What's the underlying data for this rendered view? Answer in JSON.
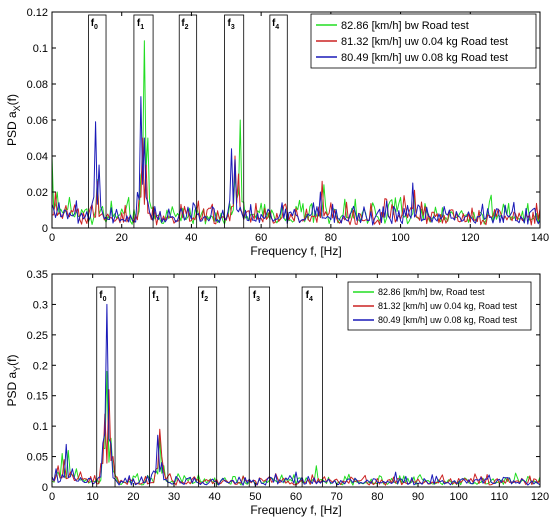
{
  "chart_data": [
    {
      "type": "line",
      "xlabel": "Frequency f, [Hz]",
      "ylabel_main": "PSD a",
      "ylabel_sub": "X",
      "ylabel_tail": "(f)",
      "xlim": [
        0,
        140
      ],
      "ylim": [
        0,
        0.12
      ],
      "xticks": [
        0,
        20,
        40,
        60,
        80,
        100,
        120,
        140
      ],
      "yticks": [
        0,
        0.02,
        0.04,
        0.06,
        0.08,
        0.1,
        0.12
      ],
      "ytick_labels": [
        "0",
        "0.02",
        "0.04",
        "0.06",
        "0.08",
        "0.1",
        "0.12"
      ],
      "legend_position": "top-right",
      "bands": [
        {
          "label": "f",
          "sub": "0",
          "x0": 10.5,
          "x1": 15.5
        },
        {
          "label": "f",
          "sub": "1",
          "x0": 23.5,
          "x1": 29.0
        },
        {
          "label": "f",
          "sub": "2",
          "x0": 36.5,
          "x1": 41.5
        },
        {
          "label": "f",
          "sub": "3",
          "x0": 49.5,
          "x1": 55.0
        },
        {
          "label": "f",
          "sub": "4",
          "x0": 62.5,
          "x1": 67.5
        }
      ],
      "series": [
        {
          "name": "82.86 [km/h] bw Road test",
          "color": "#22dd22",
          "baseline": 0.009,
          "peaks": [
            [
              0,
              0.04
            ],
            [
              1.5,
              0.02
            ],
            [
              5,
              0.017
            ],
            [
              13,
              0.027
            ],
            [
              14.5,
              0.012
            ],
            [
              26.5,
              0.104
            ],
            [
              27.5,
              0.05
            ],
            [
              41,
              0.01
            ],
            [
              52.5,
              0.03
            ],
            [
              54,
              0.06
            ],
            [
              70,
              0.012
            ],
            [
              78,
              0.024
            ],
            [
              84,
              0.016
            ],
            [
              87,
              0.016
            ],
            [
              92,
              0.014
            ],
            [
              100,
              0.017
            ],
            [
              104,
              0.018
            ],
            [
              130,
              0.01
            ]
          ]
        },
        {
          "name": "81.32 [km/h]  uw 0.04 kg Road test",
          "color": "#cc2222",
          "baseline": 0.008,
          "peaks": [
            [
              1,
              0.02
            ],
            [
              4,
              0.012
            ],
            [
              13,
              0.026
            ],
            [
              26,
              0.05
            ],
            [
              27,
              0.035
            ],
            [
              38,
              0.012
            ],
            [
              52.5,
              0.04
            ],
            [
              53.5,
              0.03
            ],
            [
              70,
              0.011
            ],
            [
              77.5,
              0.026
            ],
            [
              80,
              0.014
            ],
            [
              96,
              0.016
            ],
            [
              101,
              0.018
            ],
            [
              104,
              0.021
            ],
            [
              115,
              0.01
            ]
          ]
        },
        {
          "name": "80.49 [km/h]  uw 0.08 kg Road test",
          "color": "#1a1ab8",
          "baseline": 0.008,
          "peaks": [
            [
              2,
              0.014
            ],
            [
              12.5,
              0.059
            ],
            [
              13.5,
              0.035
            ],
            [
              25.5,
              0.073
            ],
            [
              26.5,
              0.05
            ],
            [
              40.5,
              0.014
            ],
            [
              51.5,
              0.044
            ],
            [
              52.5,
              0.038
            ],
            [
              66,
              0.014
            ],
            [
              75,
              0.014
            ],
            [
              77,
              0.02
            ],
            [
              96,
              0.015
            ],
            [
              103.5,
              0.025
            ],
            [
              114,
              0.01
            ],
            [
              132,
              0.009
            ]
          ]
        }
      ]
    },
    {
      "type": "line",
      "xlabel": "Frequency f, [Hz]",
      "ylabel_main": "PSD a",
      "ylabel_sub": "Y",
      "ylabel_tail": "(f)",
      "xlim": [
        0,
        120
      ],
      "ylim": [
        0,
        0.35
      ],
      "xticks": [
        0,
        10,
        20,
        30,
        40,
        50,
        60,
        70,
        80,
        90,
        100,
        110,
        120
      ],
      "yticks": [
        0,
        0.05,
        0.1,
        0.15,
        0.2,
        0.25,
        0.3,
        0.35
      ],
      "ytick_labels": [
        "0",
        "0.05",
        "0.1",
        "0.15",
        "0.2",
        "0.25",
        "0.3",
        "0.35"
      ],
      "legend_position": "top-right",
      "bands": [
        {
          "label": "f",
          "sub": "0",
          "x0": 11.0,
          "x1": 15.5
        },
        {
          "label": "f",
          "sub": "1",
          "x0": 24.0,
          "x1": 28.5
        },
        {
          "label": "f",
          "sub": "2",
          "x0": 36.0,
          "x1": 40.5
        },
        {
          "label": "f",
          "sub": "3",
          "x0": 48.5,
          "x1": 53.5
        },
        {
          "label": "f",
          "sub": "4",
          "x0": 61.5,
          "x1": 66.5
        }
      ],
      "series": [
        {
          "name": "82.86 [km/h]  bw, Road test",
          "color": "#22dd22",
          "baseline": 0.012,
          "peaks": [
            [
              1,
              0.02
            ],
            [
              2.5,
              0.055
            ],
            [
              4,
              0.06
            ],
            [
              6,
              0.03
            ],
            [
              13.5,
              0.19
            ],
            [
              14.5,
              0.08
            ],
            [
              26.5,
              0.08
            ],
            [
              27.5,
              0.035
            ],
            [
              40,
              0.015
            ],
            [
              54,
              0.015
            ],
            [
              61,
              0.015
            ],
            [
              65,
              0.035
            ],
            [
              68,
              0.016
            ],
            [
              91,
              0.013
            ],
            [
              95,
              0.012
            ],
            [
              101,
              0.012
            ]
          ]
        },
        {
          "name": "81.32 [km/h] uw 0.04 kg, Road test",
          "color": "#cc2222",
          "baseline": 0.012,
          "peaks": [
            [
              1.5,
              0.035
            ],
            [
              3,
              0.045
            ],
            [
              7,
              0.025
            ],
            [
              13,
              0.12
            ],
            [
              14,
              0.16
            ],
            [
              15,
              0.05
            ],
            [
              26.5,
              0.095
            ],
            [
              27,
              0.05
            ],
            [
              53,
              0.014
            ],
            [
              63,
              0.012
            ],
            [
              104,
              0.014
            ]
          ]
        },
        {
          "name": "80.49 [km/h]  uw 0.08 kg, Road test",
          "color": "#1a1ab8",
          "baseline": 0.012,
          "peaks": [
            [
              1,
              0.03
            ],
            [
              3.5,
              0.07
            ],
            [
              5,
              0.03
            ],
            [
              12.5,
              0.07
            ],
            [
              13.5,
              0.3
            ],
            [
              14.5,
              0.06
            ],
            [
              26,
              0.085
            ],
            [
              26.8,
              0.04
            ],
            [
              35,
              0.015
            ],
            [
              54,
              0.015
            ],
            [
              68,
              0.013
            ],
            [
              104,
              0.012
            ]
          ]
        }
      ]
    }
  ]
}
